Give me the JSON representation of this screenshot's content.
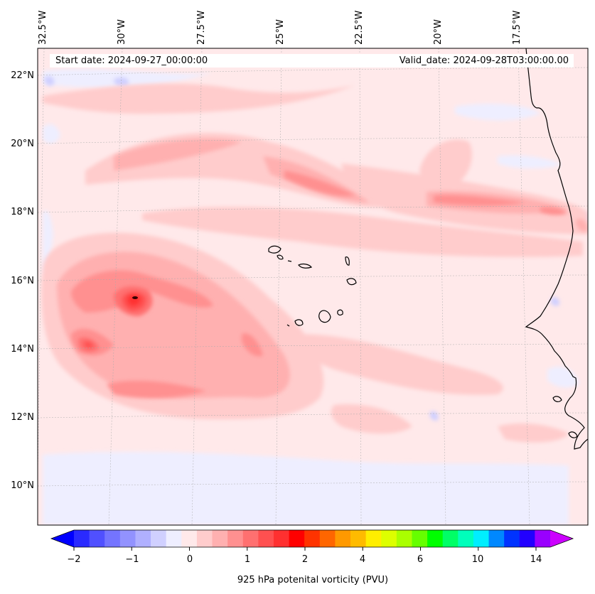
{
  "header": {
    "start_date": "Start date: 2024-09-27_00:00:00",
    "valid_date": "Valid_date: 2024-09-28T03:00:00.00"
  },
  "map": {
    "latitude_labels": [
      "22°N",
      "20°N",
      "18°N",
      "16°N",
      "14°N",
      "12°N",
      "10°N"
    ],
    "longitude_labels": [
      "32.5°W",
      "30°W",
      "27.5°W",
      "25°W",
      "22.5°W",
      "20°W",
      "17.5°W"
    ],
    "background_color": "#ffe9ea",
    "coastline_color": "#000000",
    "gridlines": true,
    "features": [
      "Cape Verde islands",
      "West African coastline",
      "Vorticity maximum near 15.5°N 30°W",
      "Secondary maximum near 14°N 32°W"
    ]
  },
  "colorbar": {
    "title": "925 hPa potenital vorticity (PVU)",
    "tick_labels": [
      "−2",
      "−1",
      "0",
      "1",
      "2",
      "4",
      "6",
      "10",
      "14"
    ],
    "colors": [
      "#0000ff",
      "#2a2aff",
      "#5050ff",
      "#7474ff",
      "#9292ff",
      "#b0b0ff",
      "#d0d0ff",
      "#eeeeff",
      "#ffe9ea",
      "#ffcccc",
      "#ffb0b0",
      "#ff9090",
      "#ff7070",
      "#ff5050",
      "#ff3030",
      "#ff0000",
      "#ff3300",
      "#ff6600",
      "#ff9900",
      "#ffbb00",
      "#ffee00",
      "#ddff00",
      "#aaff00",
      "#66ff00",
      "#00ff00",
      "#00ff66",
      "#00ffbb",
      "#00eeff",
      "#0088ff",
      "#0033ff",
      "#2200ff",
      "#9900ff",
      "#cc00ff"
    ]
  }
}
